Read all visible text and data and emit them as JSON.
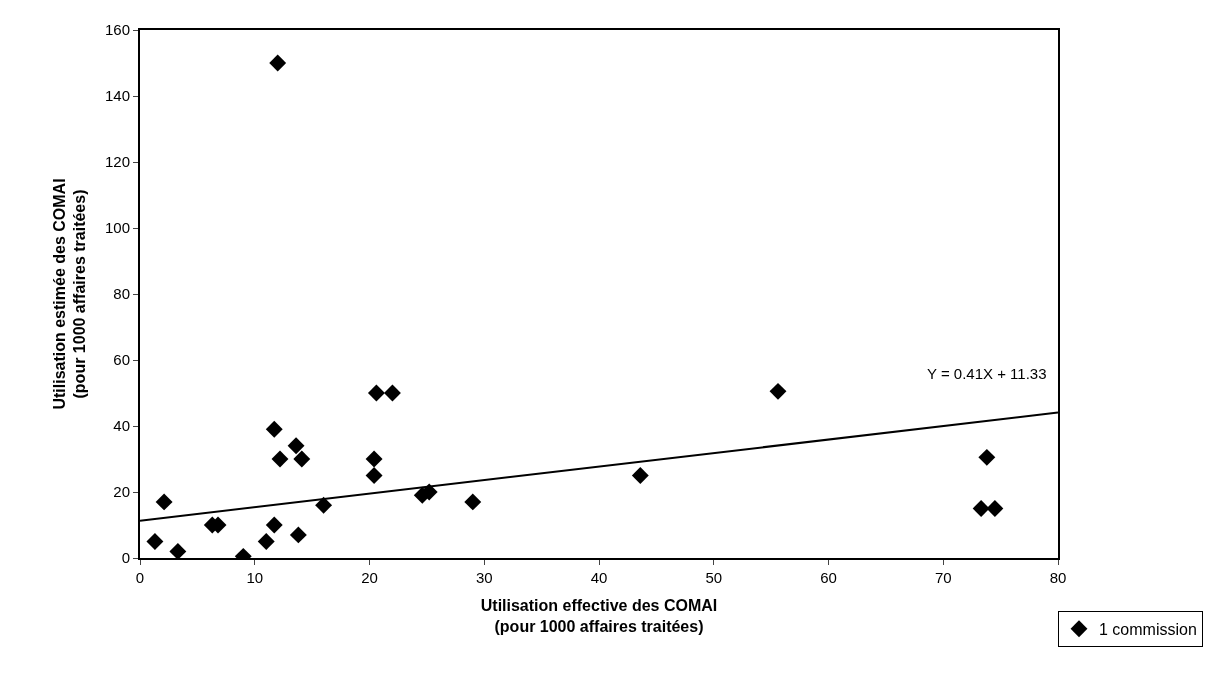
{
  "chart_data": {
    "type": "scatter",
    "xlabel": "Utilisation effective des COMAI\n(pour 1000 affaires traitées)",
    "ylabel": "Utilisation estimée des COMAI\n(pour 1000 affaires traitées)",
    "series": [
      {
        "name": "1 commission",
        "color": "#000000",
        "marker": "diamond",
        "x": [
          1.3,
          2.1,
          3.3,
          6.3,
          6.8,
          9,
          11,
          11.7,
          11.7,
          12,
          12.2,
          13.6,
          13.8,
          14.1,
          16,
          20.4,
          20.4,
          20.6,
          22,
          24.6,
          25.2,
          29,
          43.6,
          55.6,
          73.3,
          73.8,
          74.5
        ],
        "values": [
          5,
          17,
          2,
          10,
          10,
          0.5,
          5,
          39,
          10,
          150,
          30,
          34,
          7,
          30,
          16,
          30,
          25,
          50,
          50,
          19,
          20,
          17,
          25,
          50.5,
          15,
          30.5,
          15
        ]
      },
      {
        "type": "line",
        "color": "#000000",
        "marker": "none",
        "x": [
          0,
          80
        ],
        "values": [
          11.3,
          44.1
        ]
      }
    ],
    "annotations": [
      "Y = 0.41X + 11.33"
    ],
    "xlim": [
      0,
      80
    ],
    "xticks": [
      0,
      10,
      20,
      30,
      40,
      50,
      60,
      70,
      80
    ],
    "ylim": [
      0,
      160
    ],
    "yticks": [
      0,
      20,
      40,
      60,
      80,
      100,
      120,
      140,
      160
    ],
    "grid": false,
    "legend": "bottom right"
  }
}
